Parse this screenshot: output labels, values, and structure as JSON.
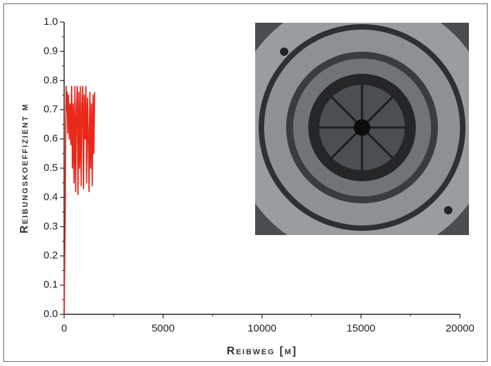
{
  "chart_data": {
    "type": "line",
    "x_label": "Reibweg [m]",
    "y_label": "Reibungskoeffizient μ",
    "x": [
      0,
      50,
      80,
      100,
      120,
      150,
      180,
      220,
      260,
      300,
      340,
      380,
      420,
      460,
      500,
      540,
      580,
      620,
      660,
      700,
      740,
      780,
      820,
      860,
      900,
      940,
      980,
      1020,
      1060,
      1100,
      1140,
      1180,
      1220,
      1260,
      1300,
      1340,
      1380,
      1420,
      1460,
      1500,
      1540
    ],
    "series": [
      {
        "color": "#e8291c",
        "values": [
          0,
          0.3,
          0.65,
          0.78,
          0.7,
          0.76,
          0.62,
          0.75,
          0.6,
          0.72,
          0.58,
          0.78,
          0.5,
          0.72,
          0.45,
          0.78,
          0.42,
          0.7,
          0.78,
          0.41,
          0.76,
          0.5,
          0.78,
          0.44,
          0.72,
          0.78,
          0.43,
          0.75,
          0.6,
          0.78,
          0.45,
          0.74,
          0.62,
          0.42,
          0.76,
          0.5,
          0.72,
          0.44,
          0.75,
          0.55,
          0.76
        ]
      }
    ],
    "xlim": [
      0,
      20000
    ],
    "xticks": [
      0,
      5000,
      10000,
      15000,
      20000
    ],
    "ylim": [
      0,
      1
    ],
    "yticks": [
      {
        "value": 0,
        "label": "0.0"
      },
      0.1,
      0.2,
      0.3,
      0.4,
      0.5,
      0.6,
      0.7,
      0.8,
      0.9,
      {
        "value": 1,
        "label": "1.0"
      }
    ]
  }
}
